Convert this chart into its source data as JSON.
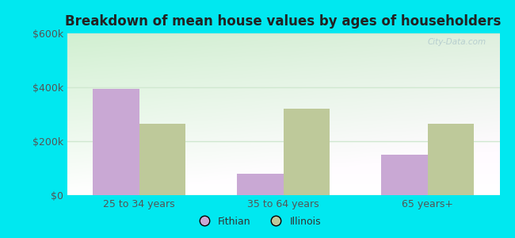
{
  "title": "Breakdown of mean house values by ages of householders",
  "categories": [
    "25 to 34 years",
    "35 to 64 years",
    "65 years+"
  ],
  "fithian_values": [
    395000,
    80000,
    150000
  ],
  "illinois_values": [
    265000,
    320000,
    265000
  ],
  "ylim": [
    0,
    600000
  ],
  "yticks": [
    0,
    200000,
    400000,
    600000
  ],
  "ytick_labels": [
    "$0",
    "$200k",
    "$400k",
    "$600k"
  ],
  "fithian_color": "#c9a8d4",
  "illinois_color": "#bec99a",
  "outer_bg": "#00e8f0",
  "title_color": "#222222",
  "watermark": "City-Data.com",
  "legend_fithian": "Fithian",
  "legend_illinois": "Illinois",
  "bar_width": 0.32,
  "bg_colors": [
    "#cce8cc",
    "#e8f5e8",
    "#f5fff5",
    "#ffffff"
  ],
  "grid_color": "#d0e8d0",
  "tick_color": "#555555"
}
